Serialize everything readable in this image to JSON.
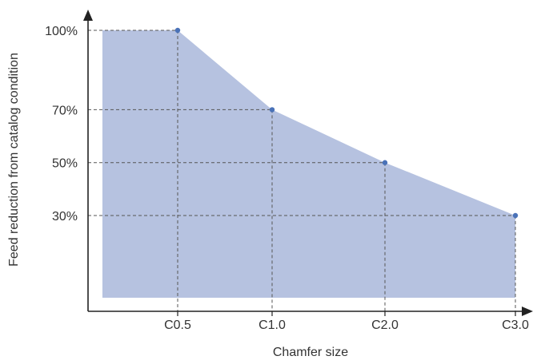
{
  "chart_data": {
    "type": "area",
    "xlabel": "Chamfer size",
    "ylabel": "Feed reduction from catalog condition",
    "categories": [
      "C0.5",
      "C1.0",
      "C2.0",
      "C3.0"
    ],
    "y_ticks": [
      "100%",
      "70%",
      "50%",
      "30%"
    ],
    "y_tick_values": [
      100,
      70,
      50,
      30
    ],
    "values": [
      100,
      70,
      50,
      30
    ],
    "ylim": [
      0,
      100
    ],
    "grid": "dashed guide lines from each point to both axes",
    "colors": {
      "area": "#b6c2e0",
      "point": "#4a72b8",
      "axis": "#222222",
      "guide": "#555555"
    }
  }
}
